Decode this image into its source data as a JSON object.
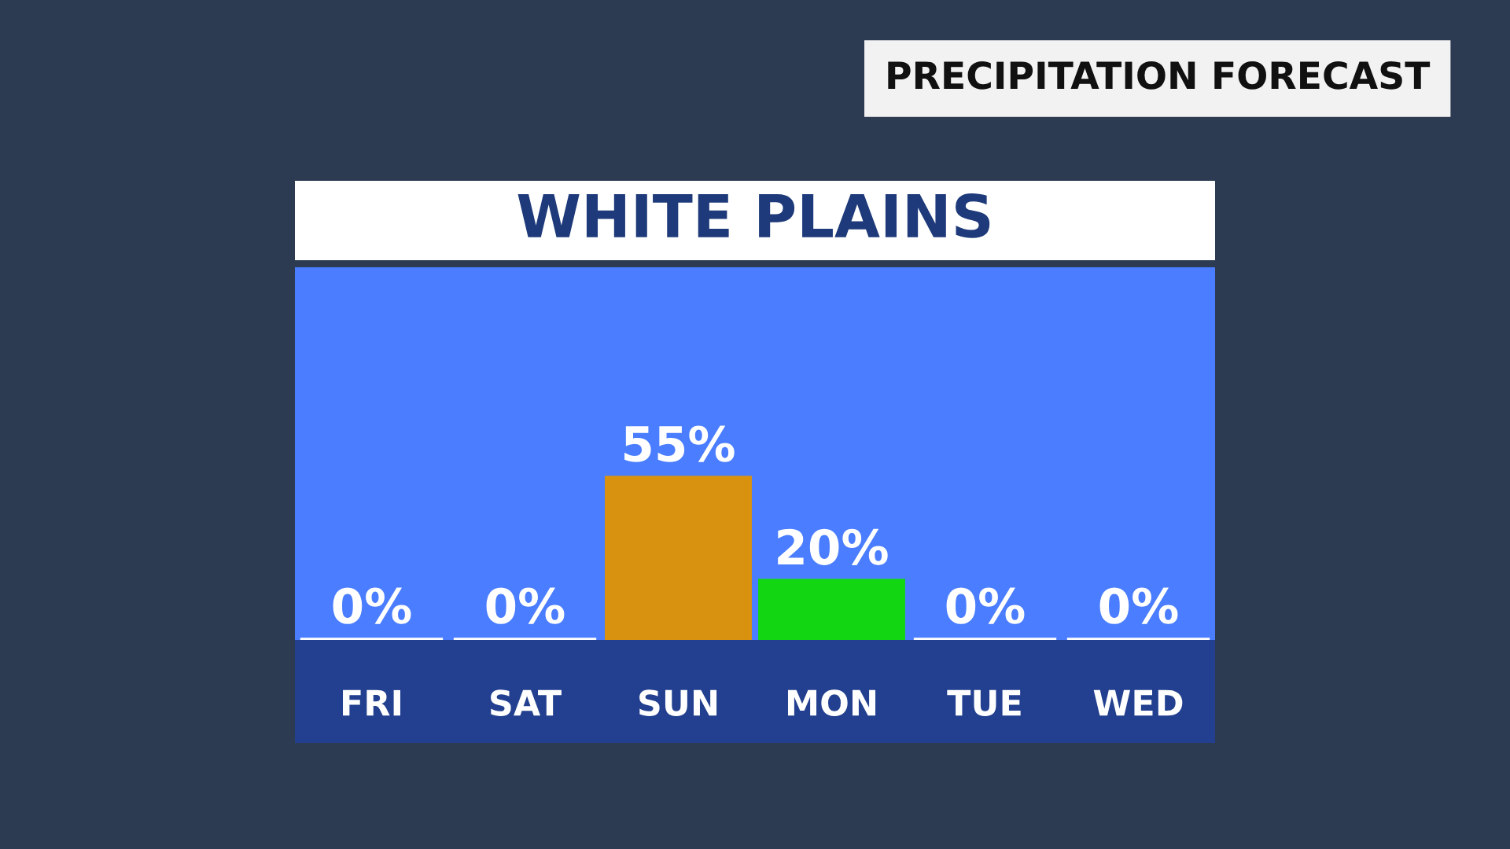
{
  "chart_data": {
    "type": "bar",
    "title": "WHITE PLAINS",
    "subtitle": "PRECIPITATION FORECAST",
    "categories": [
      "FRI",
      "SAT",
      "SUN",
      "MON",
      "TUE",
      "WED"
    ],
    "values": [
      0,
      0,
      55,
      20,
      0,
      0
    ],
    "colors": [
      "#ffffff",
      "#ffffff",
      "#d9920f",
      "#13d613",
      "#ffffff",
      "#ffffff"
    ],
    "value_labels": [
      "0%",
      "0%",
      "55%",
      "20%",
      "0%",
      "0%"
    ],
    "grid": false,
    "legend": false
  }
}
